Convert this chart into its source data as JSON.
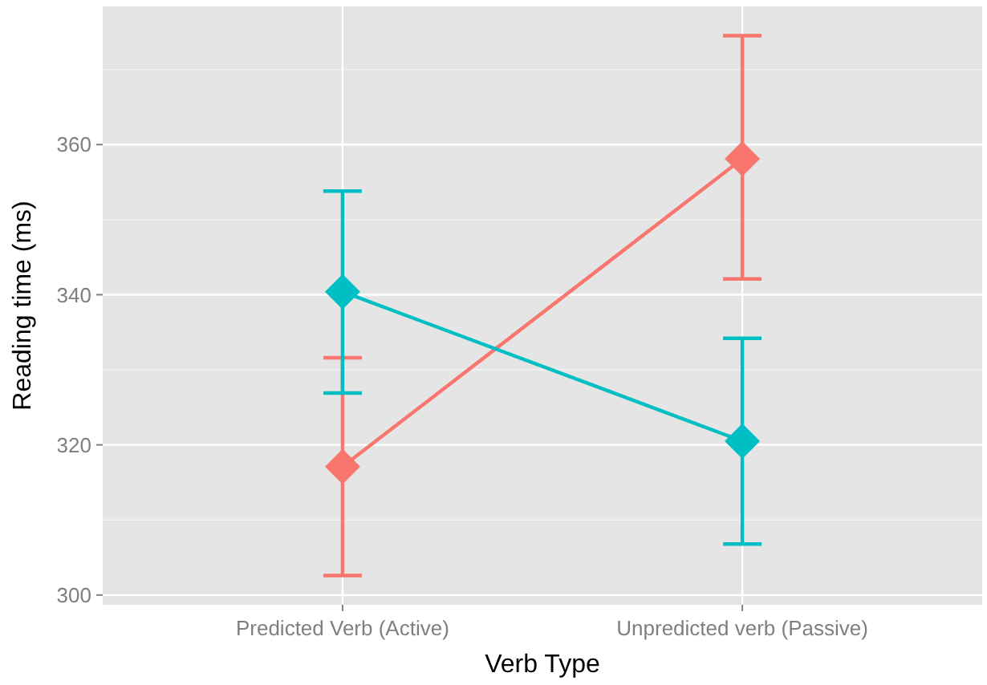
{
  "chart_data": {
    "type": "line",
    "xlabel": "Verb Type",
    "ylabel": "Reading time (ms)",
    "categories": [
      "Predicted Verb (Active)",
      "Unpredicted verb (Passive)"
    ],
    "series": [
      {
        "color": "#f8766d",
        "values": [
          317.1,
          358.1
        ],
        "errors": [
          [
            302.6,
            331.6
          ],
          [
            342.1,
            374.5
          ]
        ]
      },
      {
        "color": "#00bfc4",
        "values": [
          340.4,
          320.5
        ],
        "errors": [
          [
            326.9,
            353.8
          ],
          [
            306.8,
            334.2
          ]
        ]
      }
    ],
    "ylim": [
      298.7,
      378.4
    ],
    "yticks": [
      300,
      320,
      340,
      360
    ],
    "grid": true,
    "marker": "diamond",
    "line_style": "solid"
  }
}
